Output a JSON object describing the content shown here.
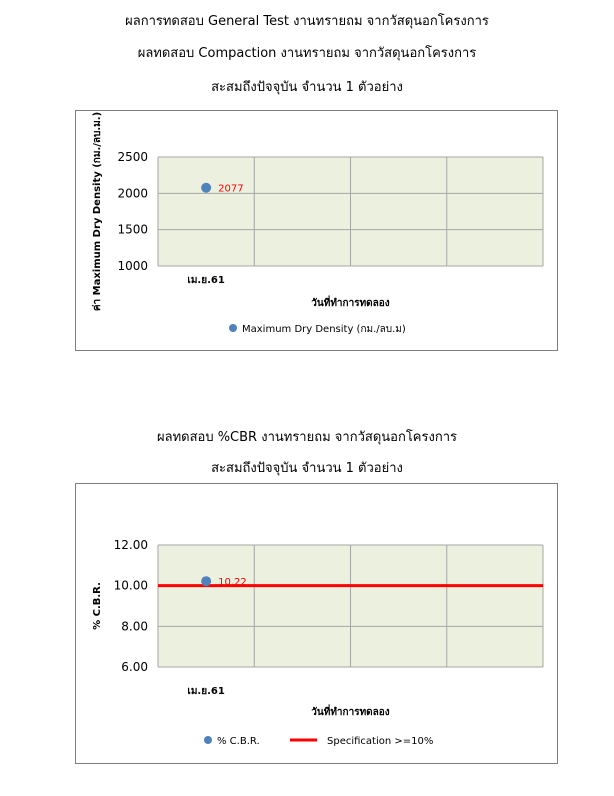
{
  "titles": {
    "line1": "ผลการทดสอบ General Test งานทรายถม จากวัสดุนอกโครงการ",
    "line2": "ผลทดสอบ Compaction งานทรายถม จากวัสดุนอกโครงการ",
    "line3": "สะสมถึงปัจจุบัน จำนวน 1 ตัวอย่าง",
    "line4": "ผลทดสอบ %CBR งานทรายถม จากวัสดุนอกโครงการ",
    "line5": "สะสมถึงปัจจุบัน จำนวน 1 ตัวอย่าง"
  },
  "colors": {
    "plot_bg": "#ebf1de",
    "grid": "#a6a6a6",
    "point": "#4f81bd",
    "spec": "#ff0000",
    "label": "#ff0000"
  },
  "chart_data": [
    {
      "type": "scatter",
      "categories": [
        "เม.ย.61",
        "",
        "",
        ""
      ],
      "x_label": "วันที่ทำการทดลอง",
      "y_label": "ค่า Maximum Dry Density (กม./ลบ.ม.)",
      "ylim": [
        1000,
        2500
      ],
      "yticks": [
        "1000",
        "1500",
        "2000",
        "2500"
      ],
      "series": [
        {
          "name": "Maximum Dry Density (กม./ลบ.ม)",
          "values": [
            2077
          ],
          "labels": [
            "2077"
          ]
        }
      ],
      "legend": "bottom",
      "grid": true
    },
    {
      "type": "scatter",
      "categories": [
        "เม.ย.61",
        "",
        "",
        ""
      ],
      "x_label": "วันที่ทำการทดลอง",
      "y_label": "% C.B.R.",
      "ylim": [
        6,
        12
      ],
      "yticks": [
        "6.00",
        "8.00",
        "10.00",
        "12.00"
      ],
      "series": [
        {
          "name": "% C.B.R.",
          "values": [
            10.22
          ],
          "labels": [
            "10.22"
          ]
        }
      ],
      "spec_line": {
        "name": "Specification >=10%",
        "value": 10
      },
      "legend": "bottom",
      "grid": true
    }
  ]
}
